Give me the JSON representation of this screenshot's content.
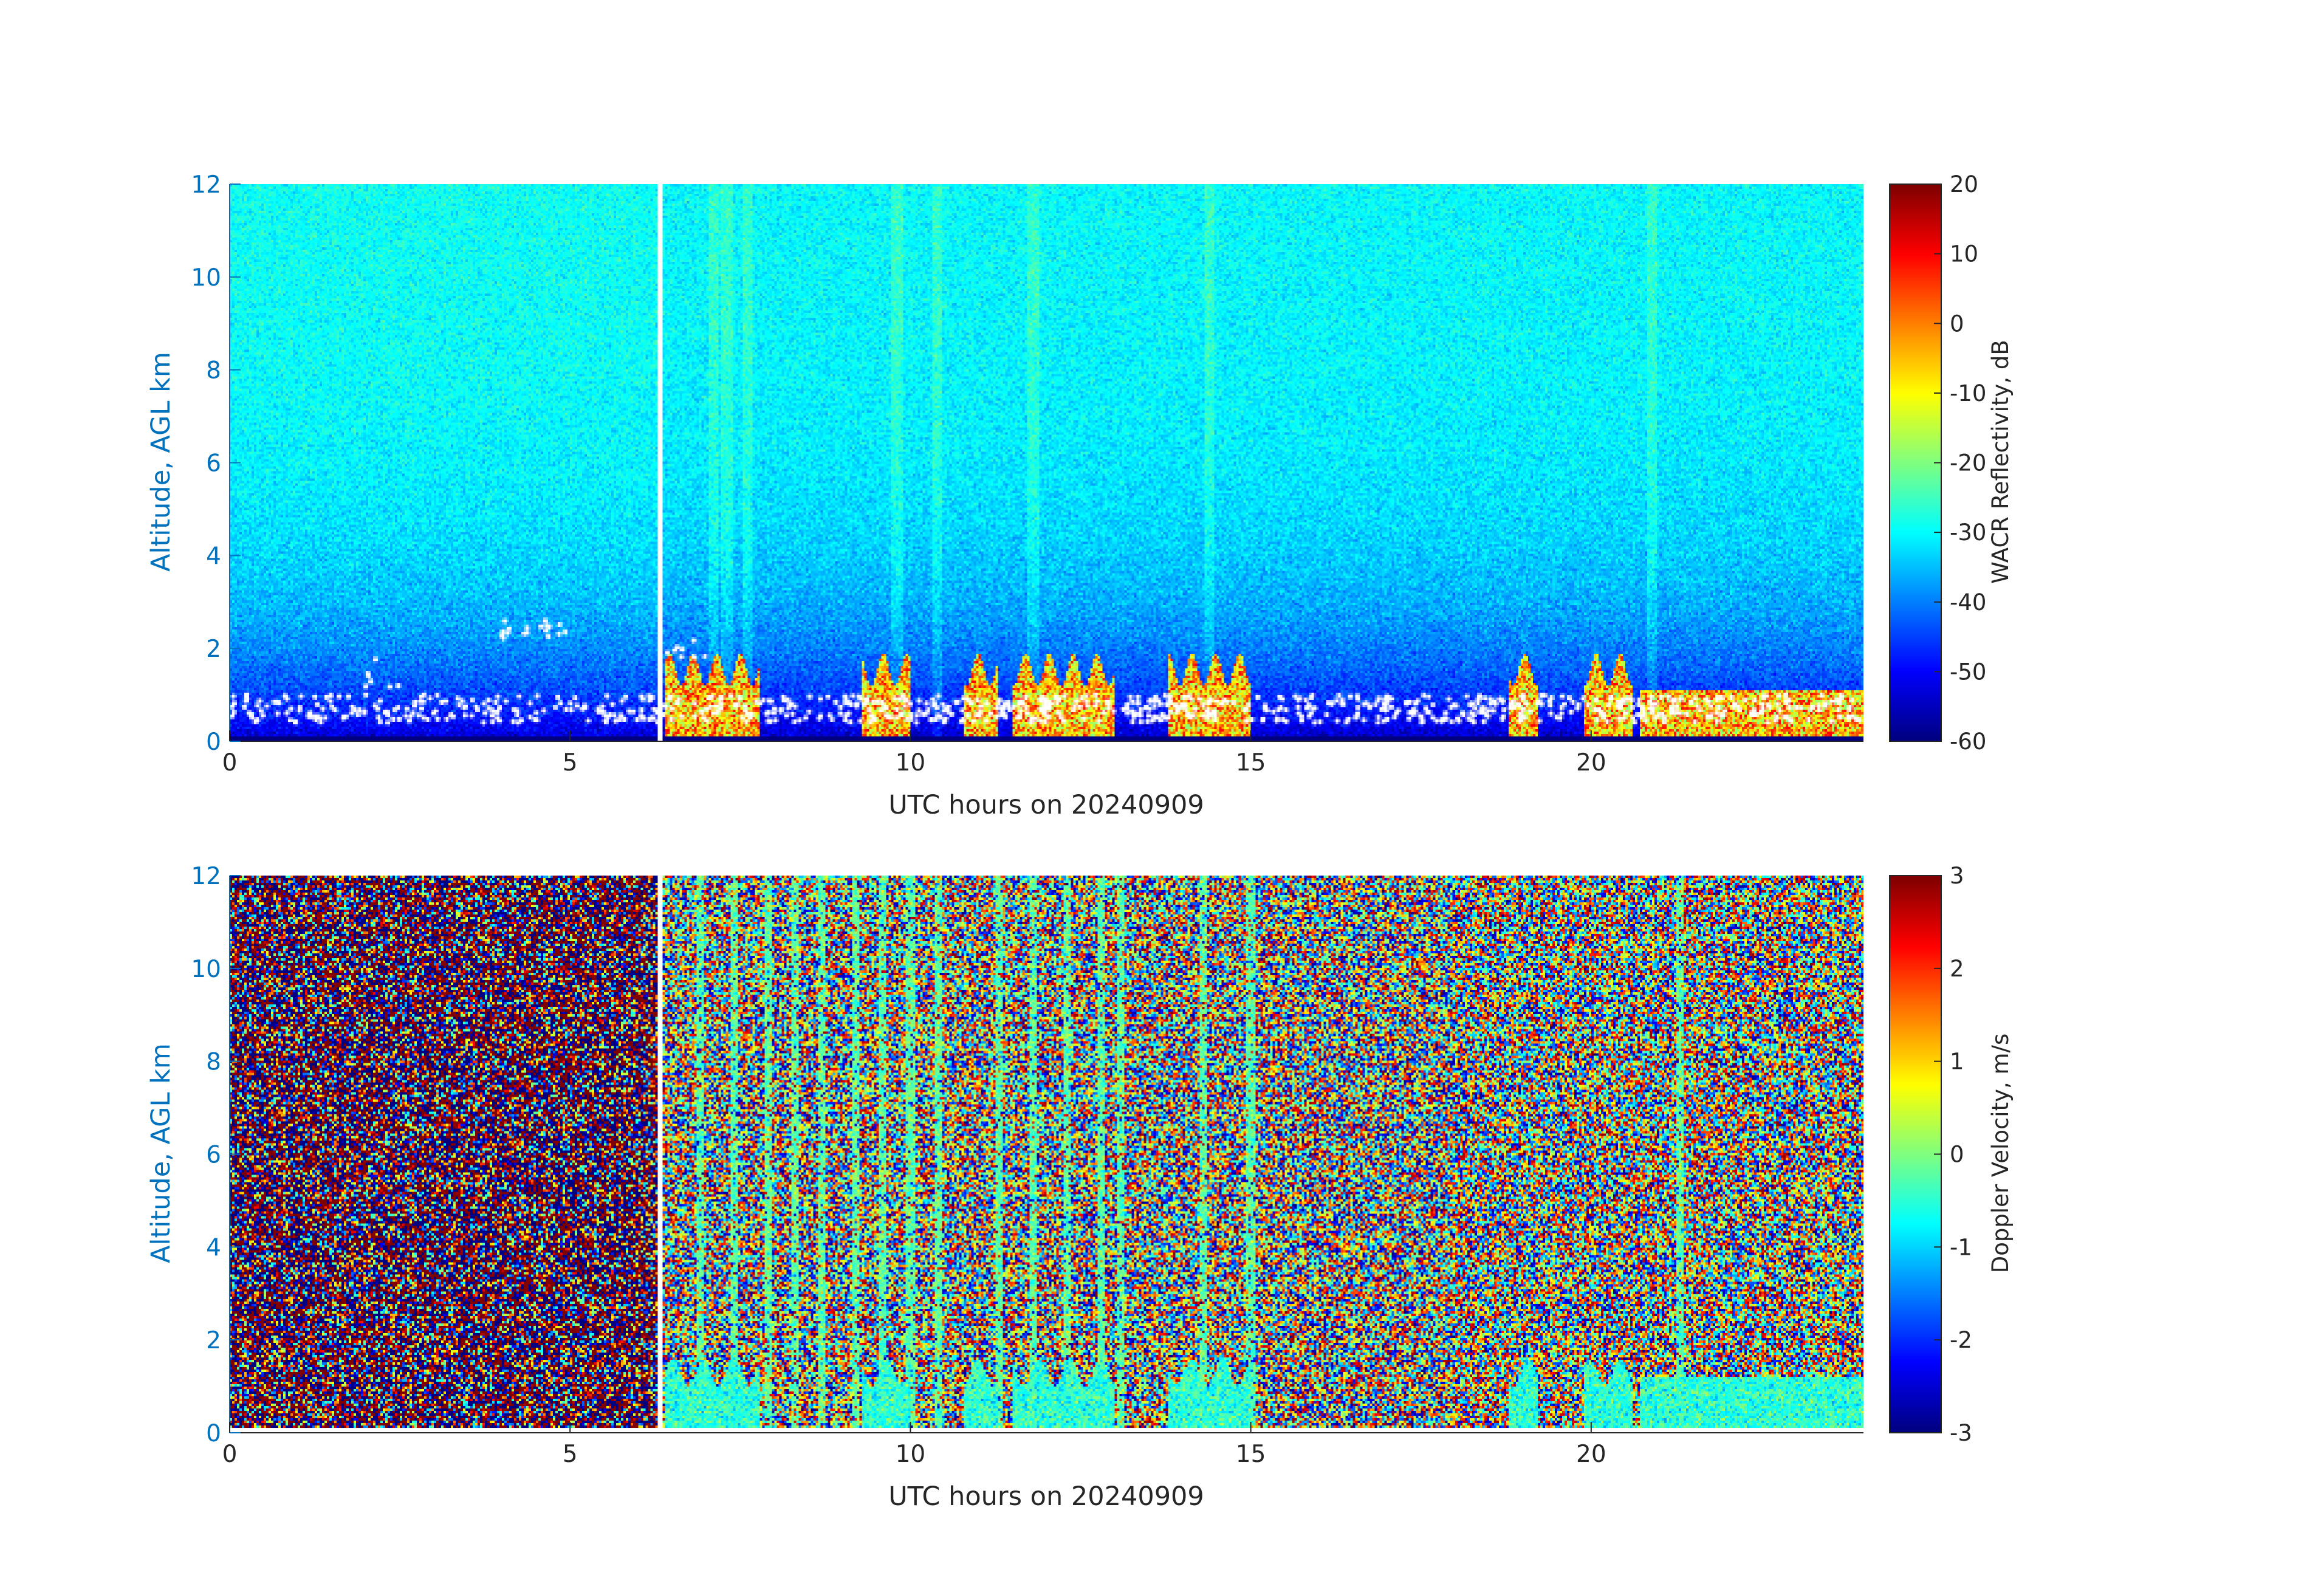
{
  "chart_data": [
    {
      "type": "heatmap",
      "xlabel": "UTC hours on 20240909",
      "ylabel": "Altitude, AGL km",
      "xlim": [
        0,
        24
      ],
      "ylim": [
        0,
        12
      ],
      "xticks": [
        0,
        5,
        10,
        15,
        20
      ],
      "yticks": [
        0,
        2,
        4,
        6,
        8,
        10,
        12
      ],
      "colorbar": {
        "label": "WACR Reflectivity, dB",
        "min": -60,
        "max": 20,
        "ticks": [
          -60,
          -50,
          -40,
          -30,
          -20,
          -10,
          0,
          10,
          20
        ],
        "colormap": "jet"
      },
      "data_gap_hours": [
        6.3,
        6.35
      ],
      "features": {
        "background_dB_high_altitude": -30,
        "background_dB_low_altitude": -55,
        "low_cloud_echoes_dB": [
          -20,
          10
        ],
        "echo_top_km": 2.0,
        "white_markers": "cloud base points, mostly 0.5-2.5 km",
        "persistent_cloud_layer_hours": [
          21.5,
          24
        ],
        "persistent_cloud_layer_top_km": 1.1
      }
    },
    {
      "type": "heatmap",
      "xlabel": "UTC hours on 20240909",
      "ylabel": "Altitude, AGL km",
      "xlim": [
        0,
        24
      ],
      "ylim": [
        0,
        12
      ],
      "xticks": [
        0,
        5,
        10,
        15,
        20
      ],
      "yticks": [
        0,
        2,
        4,
        6,
        8,
        10,
        12
      ],
      "colorbar": {
        "label": "Doppler Velocity, m/s",
        "min": -3,
        "max": 3,
        "ticks": [
          -3,
          -2,
          -1,
          0,
          1,
          2,
          3
        ],
        "colormap": "jet"
      },
      "data_gap_hours": [
        6.3,
        6.35
      ],
      "features": {
        "noise_pattern": "random velocities across the range",
        "vertical_streak_hours": [
          6.9,
          7.4,
          7.9,
          8.3,
          8.7,
          9.2,
          9.6,
          10.0,
          10.4,
          11.3,
          11.8,
          12.3,
          12.8,
          13.1,
          14.3,
          15.0,
          21.3
        ],
        "low_echo_hours": [
          [
            6.4,
            7.8
          ],
          [
            9.3,
            10.0
          ],
          [
            10.8,
            11.3
          ],
          [
            11.5,
            13.0
          ],
          [
            13.8,
            15.0
          ],
          [
            18.8,
            19.2
          ],
          [
            19.9,
            20.6
          ],
          [
            20.7,
            24.0
          ]
        ],
        "low_echo_velocity_ms": -0.5
      }
    }
  ],
  "colors": {
    "axis_label": "#0072bd",
    "tick_text": "#262626",
    "axis_line": "#262626",
    "markers": "#ffffff"
  }
}
